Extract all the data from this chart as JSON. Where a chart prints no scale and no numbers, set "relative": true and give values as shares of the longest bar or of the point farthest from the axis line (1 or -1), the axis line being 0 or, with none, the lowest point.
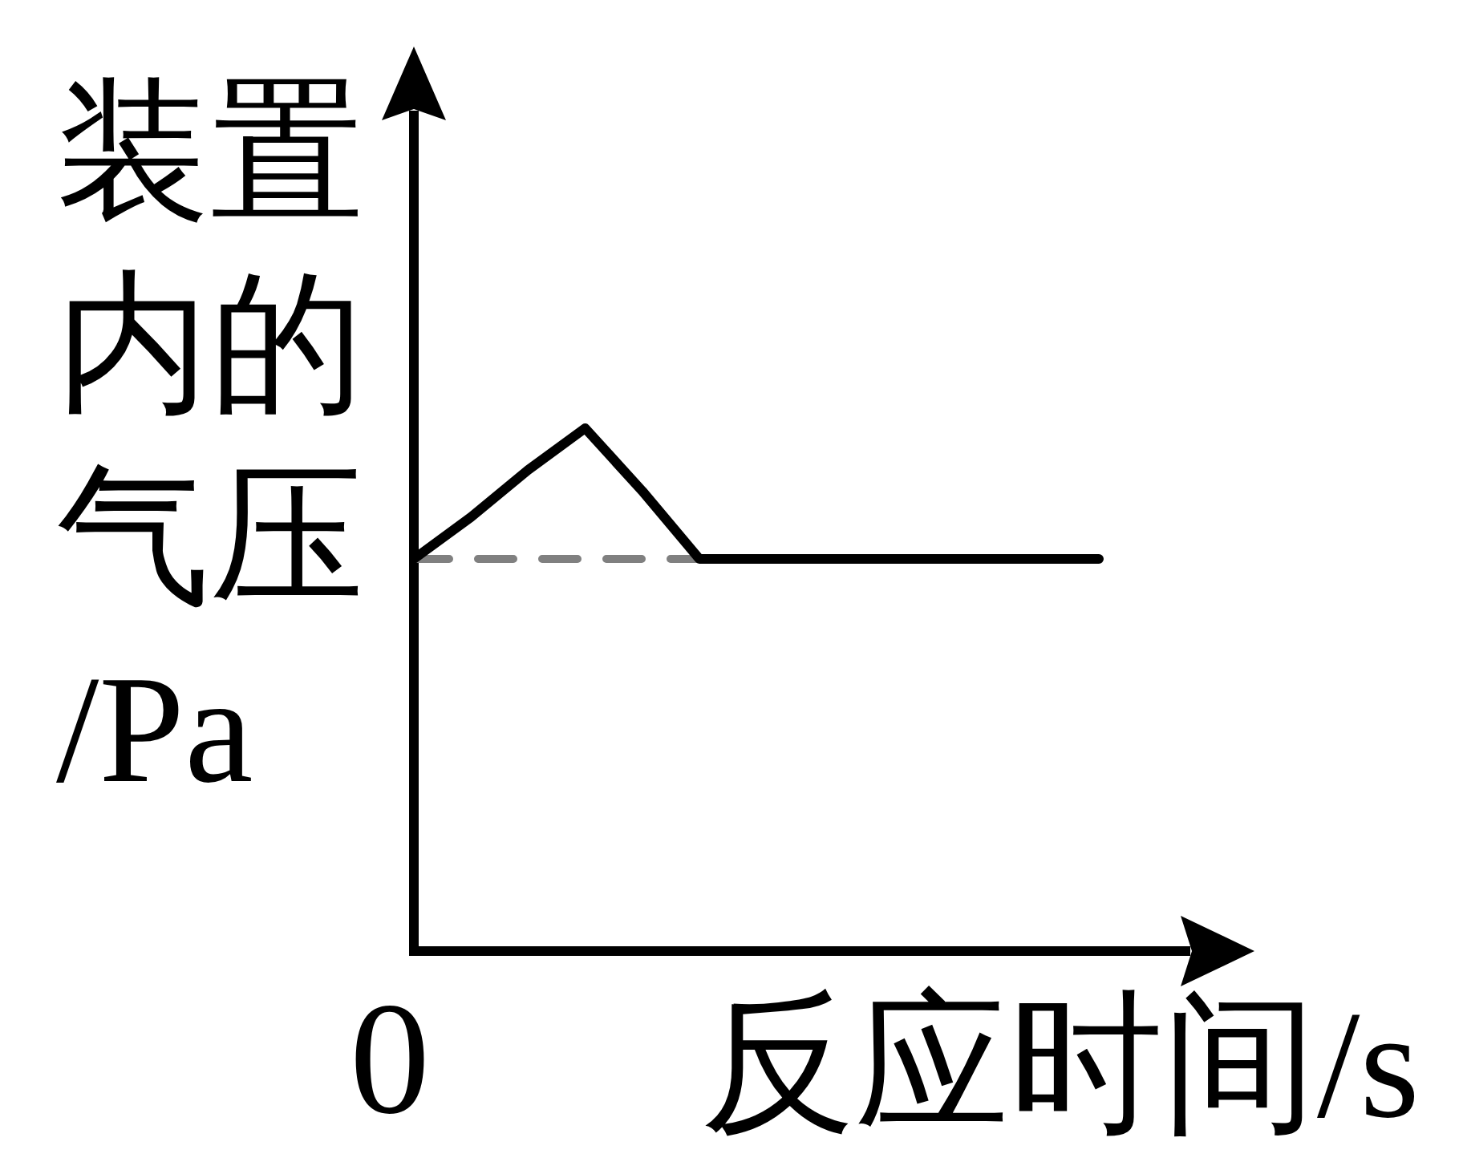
{
  "chart_data": {
    "type": "line",
    "xlabel": "反应时间/s",
    "ylabel": "装置内的气压/Pa",
    "relative": true,
    "marker": "none",
    "annotations": [
      "0"
    ],
    "categories": [
      null,
      null,
      null,
      null,
      null,
      null,
      null,
      null,
      null,
      null,
      null,
      null,
      null
    ],
    "series": [
      {
        "color": "#000000",
        "line_style": "solid",
        "values": [
          0.75,
          0.83,
          0.92,
          1,
          0.88,
          0.75,
          0.75,
          0.75,
          0.75,
          0.75,
          0.75,
          0.75,
          0.75
        ]
      },
      {
        "color": "#808080",
        "line_style": "dashed",
        "values": [
          0.75,
          0.75,
          0.75,
          0.75,
          0.75,
          0.75,
          null,
          null,
          null,
          null,
          null,
          null,
          null
        ]
      }
    ]
  }
}
